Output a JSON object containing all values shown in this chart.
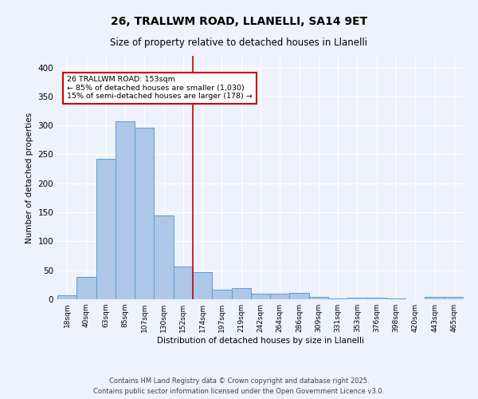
{
  "title1": "26, TRALLWM ROAD, LLANELLI, SA14 9ET",
  "title2": "Size of property relative to detached houses in Llanelli",
  "xlabel": "Distribution of detached houses by size in Llanelli",
  "ylabel": "Number of detached properties",
  "bar_labels": [
    "18sqm",
    "40sqm",
    "63sqm",
    "85sqm",
    "107sqm",
    "130sqm",
    "152sqm",
    "174sqm",
    "197sqm",
    "219sqm",
    "242sqm",
    "264sqm",
    "286sqm",
    "309sqm",
    "331sqm",
    "353sqm",
    "376sqm",
    "398sqm",
    "420sqm",
    "443sqm",
    "465sqm"
  ],
  "bar_values": [
    7,
    38,
    243,
    307,
    296,
    144,
    57,
    47,
    17,
    19,
    9,
    9,
    11,
    4,
    1,
    3,
    3,
    1,
    0,
    4,
    4
  ],
  "bar_color": "#aec6e8",
  "bar_edge_color": "#5a9fd4",
  "vline_color": "#cc0000",
  "annotation_text": "26 TRALLWM ROAD: 153sqm\n← 85% of detached houses are smaller (1,030)\n15% of semi-detached houses are larger (178) →",
  "annotation_box_color": "#ffffff",
  "annotation_box_edge_color": "#cc0000",
  "background_color": "#eef2fa",
  "grid_color": "#ffffff",
  "ylim": [
    0,
    420
  ],
  "footer1": "Contains HM Land Registry data © Crown copyright and database right 2025.",
  "footer2": "Contains public sector information licensed under the Open Government Licence v3.0."
}
